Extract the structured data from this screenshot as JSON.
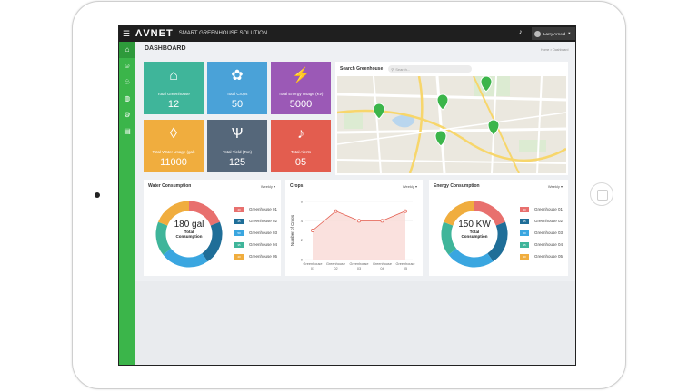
{
  "app": {
    "logo": "ΛVNET",
    "subtitle": "SMART GREENHOUSE SOLUTION",
    "user": "Larry Arnold",
    "user_caret": "▾"
  },
  "page": {
    "title": "DASHBOARD",
    "breadcrumb": "Home > Dashboard"
  },
  "sidebar": {
    "items": [
      {
        "icon": "greenhouse-icon",
        "glyph": "⌂"
      },
      {
        "icon": "user-icon",
        "glyph": "☺"
      },
      {
        "icon": "plant-icon",
        "glyph": "♧"
      },
      {
        "icon": "globe-icon",
        "glyph": "◍"
      },
      {
        "icon": "settings-icon",
        "glyph": "⚙"
      },
      {
        "icon": "report-icon",
        "glyph": "▤"
      }
    ]
  },
  "tiles": [
    {
      "label": "Total Greenhouse",
      "value": "12",
      "color": "#3fb59a",
      "icon": "greenhouse-icon",
      "glyph": "⌂"
    },
    {
      "label": "Total Crops",
      "value": "50",
      "color": "#4aa2d8",
      "icon": "plant-icon",
      "glyph": "✿"
    },
    {
      "label": "Total Energy Usage (Kv)",
      "value": "5000",
      "color": "#9b59b6",
      "icon": "energy-icon",
      "glyph": "⚡"
    },
    {
      "label": "Total Water Usage (gal)",
      "value": "11000",
      "color": "#f0ad3e",
      "icon": "water-drop-icon",
      "glyph": "◊"
    },
    {
      "label": "Total Yield (Ton)",
      "value": "125",
      "color": "#55677a",
      "icon": "grass-icon",
      "glyph": "Ѱ"
    },
    {
      "label": "Total Alerts",
      "value": "05",
      "color": "#e35d4f",
      "icon": "alert-bell-icon",
      "glyph": "♪"
    }
  ],
  "map": {
    "title": "Search Greenhouse",
    "search_placeholder": "Search..."
  },
  "water": {
    "title": "Water Consumption",
    "period": "Weekly",
    "center_value": "180 gal",
    "center_label_1": "Total",
    "center_label_2": "Consumption",
    "legend": [
      {
        "name": "Greenhouse 01",
        "pct": "40",
        "color": "#e8706e"
      },
      {
        "name": "Greenhouse 02",
        "pct": "45",
        "color": "#1f6e98"
      },
      {
        "name": "Greenhouse 03",
        "pct": "50",
        "color": "#3aa6e0"
      },
      {
        "name": "Greenhouse 04",
        "pct": "35",
        "color": "#3fb59a"
      },
      {
        "name": "Greenhouse 05",
        "pct": "40",
        "color": "#f0ad3e"
      }
    ]
  },
  "energy": {
    "title": "Energy Consumption",
    "period": "Weekly",
    "center_value": "150 KW",
    "center_label_1": "Total",
    "center_label_2": "Consumption",
    "legend": [
      {
        "name": "Greenhouse 01",
        "pct": "40",
        "color": "#e8706e"
      },
      {
        "name": "Greenhouse 02",
        "pct": "45",
        "color": "#1f6e98"
      },
      {
        "name": "Greenhouse 03",
        "pct": "50",
        "color": "#3aa6e0"
      },
      {
        "name": "Greenhouse 04",
        "pct": "35",
        "color": "#3fb59a"
      },
      {
        "name": "Greenhouse 05",
        "pct": "40",
        "color": "#f0ad3e"
      }
    ]
  },
  "crops": {
    "title": "Crops",
    "period": "Weekly"
  },
  "chart_data": {
    "type": "line",
    "title": "Crops",
    "ylabel": "Number of Crops",
    "xlabel": "",
    "categories": [
      "Greenhouse 01",
      "Greenhouse 02",
      "Greenhouse 03",
      "Greenhouse 04",
      "Greenhouse 05"
    ],
    "values": [
      3,
      5,
      4,
      4,
      5
    ],
    "ylim": [
      0,
      6
    ],
    "yticks": [
      "0",
      "2",
      "4",
      "6"
    ],
    "line_color": "#e35d4f",
    "fill_color": "#f9d9d6"
  }
}
